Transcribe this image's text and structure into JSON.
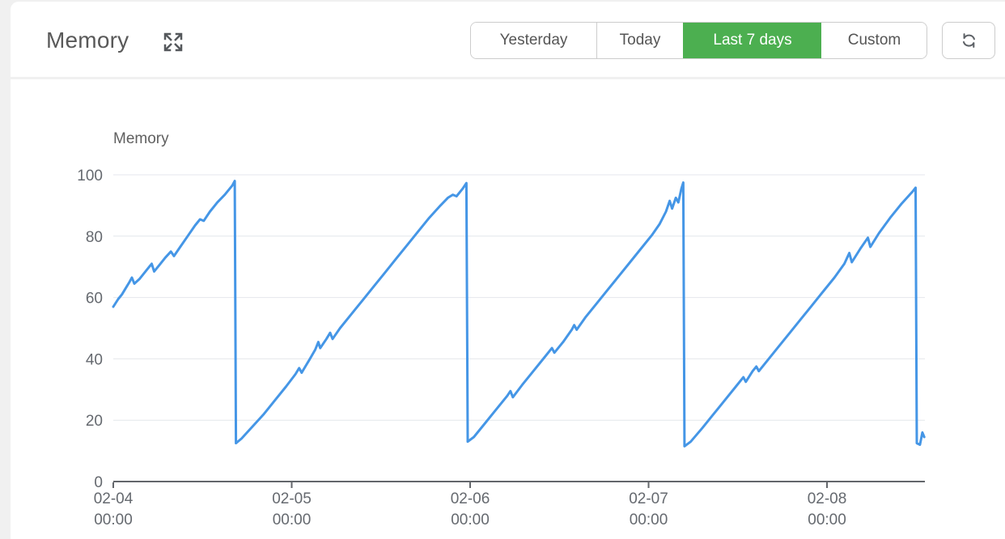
{
  "header": {
    "title": "Memory",
    "expand_icon": "expand-arrows-icon"
  },
  "toolbar": {
    "ranges": [
      {
        "label": "Yesterday",
        "active": false
      },
      {
        "label": "Today",
        "active": false
      },
      {
        "label": "Last 7 days",
        "active": true
      },
      {
        "label": "Custom",
        "active": false
      }
    ],
    "refresh_icon": "sync-icon"
  },
  "colors": {
    "accent_green": "#4caf50",
    "line_blue": "#4596e6",
    "axis": "#63666b",
    "grid": "#e4e7ec",
    "label": "#65696f",
    "page_bg": "#f0f0f0",
    "button_border": "#cccccc"
  },
  "chart_data": {
    "type": "line",
    "title": "Memory",
    "xlabel": "",
    "ylabel": "",
    "ylim": [
      0,
      100
    ],
    "y_ticks": [
      0,
      20,
      40,
      60,
      80,
      100
    ],
    "x_ticks": [
      "02-04 00:00",
      "02-05 00:00",
      "02-06 00:00",
      "02-07 00:00",
      "02-08 00:00"
    ],
    "x_range": [
      "02-04 00:00",
      "02-08 13:10"
    ],
    "grid": true,
    "legend": false,
    "series": [
      {
        "name": "Memory",
        "color": "#4596e6",
        "points": [
          [
            "02-04 00:00",
            57
          ],
          [
            "02-04 00:40",
            59.5
          ],
          [
            "02-04 01:10",
            61
          ],
          [
            "02-04 01:40",
            63
          ],
          [
            "02-04 02:10",
            65
          ],
          [
            "02-04 02:30",
            66.5
          ],
          [
            "02-04 02:50",
            64.5
          ],
          [
            "02-04 03:30",
            66
          ],
          [
            "02-04 04:10",
            68
          ],
          [
            "02-04 04:50",
            70
          ],
          [
            "02-04 05:10",
            71
          ],
          [
            "02-04 05:30",
            68.5
          ],
          [
            "02-04 06:10",
            70.5
          ],
          [
            "02-04 07:00",
            73
          ],
          [
            "02-04 07:45",
            75
          ],
          [
            "02-04 08:10",
            73.5
          ],
          [
            "02-04 09:00",
            76.5
          ],
          [
            "02-04 10:00",
            80
          ],
          [
            "02-04 11:00",
            83.5
          ],
          [
            "02-04 11:40",
            85.5
          ],
          [
            "02-04 12:10",
            85
          ],
          [
            "02-04 13:00",
            88
          ],
          [
            "02-04 14:00",
            91
          ],
          [
            "02-04 15:00",
            93.5
          ],
          [
            "02-04 16:00",
            96.5
          ],
          [
            "02-04 16:20",
            98
          ],
          [
            "02-04 16:30",
            12.5
          ],
          [
            "02-04 17:15",
            14
          ],
          [
            "02-04 18:45",
            18
          ],
          [
            "02-04 20:15",
            22
          ],
          [
            "02-04 21:45",
            26.5
          ],
          [
            "02-04 23:15",
            31
          ],
          [
            "02-05 00:30",
            35
          ],
          [
            "02-05 01:00",
            37
          ],
          [
            "02-05 01:20",
            35.5
          ],
          [
            "02-05 02:20",
            39.5
          ],
          [
            "02-05 03:10",
            43
          ],
          [
            "02-05 03:35",
            45.5
          ],
          [
            "02-05 03:50",
            43.5
          ],
          [
            "02-05 04:40",
            46.5
          ],
          [
            "02-05 05:10",
            48.5
          ],
          [
            "02-05 05:30",
            46.5
          ],
          [
            "02-05 06:30",
            50
          ],
          [
            "02-05 08:00",
            54.5
          ],
          [
            "02-05 09:30",
            59
          ],
          [
            "02-05 11:00",
            63.5
          ],
          [
            "02-05 12:30",
            68
          ],
          [
            "02-05 14:00",
            72.5
          ],
          [
            "02-05 15:30",
            77
          ],
          [
            "02-05 17:00",
            81.5
          ],
          [
            "02-05 18:30",
            86
          ],
          [
            "02-05 20:00",
            90
          ],
          [
            "02-05 21:00",
            92.5
          ],
          [
            "02-05 21:40",
            93.5
          ],
          [
            "02-05 22:10",
            93
          ],
          [
            "02-05 23:00",
            95.5
          ],
          [
            "02-05 23:30",
            97.3
          ],
          [
            "02-05 23:40",
            13
          ],
          [
            "02-06 00:30",
            14.5
          ],
          [
            "02-06 02:00",
            19
          ],
          [
            "02-06 03:30",
            23.5
          ],
          [
            "02-06 05:00",
            28
          ],
          [
            "02-06 05:25",
            29.5
          ],
          [
            "02-06 05:45",
            27.5
          ],
          [
            "02-06 07:00",
            31.5
          ],
          [
            "02-06 08:30",
            36
          ],
          [
            "02-06 10:00",
            40.5
          ],
          [
            "02-06 11:00",
            43.5
          ],
          [
            "02-06 11:20",
            42
          ],
          [
            "02-06 12:30",
            45.5
          ],
          [
            "02-06 13:40",
            49.5
          ],
          [
            "02-06 14:00",
            51
          ],
          [
            "02-06 14:20",
            49.5
          ],
          [
            "02-06 15:30",
            53.5
          ],
          [
            "02-06 17:00",
            58
          ],
          [
            "02-06 18:30",
            62.5
          ],
          [
            "02-06 20:00",
            67
          ],
          [
            "02-06 21:30",
            71.5
          ],
          [
            "02-06 23:00",
            76
          ],
          [
            "02-07 00:30",
            80.5
          ],
          [
            "02-07 01:30",
            84
          ],
          [
            "02-07 02:20",
            88
          ],
          [
            "02-07 02:50",
            91.5
          ],
          [
            "02-07 03:10",
            89
          ],
          [
            "02-07 03:40",
            92.5
          ],
          [
            "02-07 04:00",
            91
          ],
          [
            "02-07 04:25",
            95.5
          ],
          [
            "02-07 04:40",
            97.5
          ],
          [
            "02-07 04:50",
            11.5
          ],
          [
            "02-07 05:40",
            13
          ],
          [
            "02-07 07:15",
            17.5
          ],
          [
            "02-07 08:45",
            22
          ],
          [
            "02-07 10:15",
            26.5
          ],
          [
            "02-07 11:45",
            31
          ],
          [
            "02-07 12:45",
            34
          ],
          [
            "02-07 13:05",
            32.5
          ],
          [
            "02-07 14:00",
            36
          ],
          [
            "02-07 14:30",
            37.5
          ],
          [
            "02-07 14:50",
            36
          ],
          [
            "02-07 16:00",
            39.5
          ],
          [
            "02-07 17:30",
            44
          ],
          [
            "02-07 19:00",
            48.5
          ],
          [
            "02-07 20:30",
            53
          ],
          [
            "02-07 22:00",
            57.5
          ],
          [
            "02-07 23:30",
            62
          ],
          [
            "02-08 01:00",
            66.5
          ],
          [
            "02-08 02:20",
            71
          ],
          [
            "02-08 03:00",
            74.5
          ],
          [
            "02-08 03:20",
            71.5
          ],
          [
            "02-08 04:30",
            76
          ],
          [
            "02-08 05:30",
            79.5
          ],
          [
            "02-08 05:50",
            76.5
          ],
          [
            "02-08 07:00",
            81
          ],
          [
            "02-08 08:30",
            86
          ],
          [
            "02-08 10:00",
            90.5
          ],
          [
            "02-08 11:30",
            94.5
          ],
          [
            "02-08 11:55",
            95.8
          ],
          [
            "02-08 12:05",
            12.5
          ],
          [
            "02-08 12:30",
            12
          ],
          [
            "02-08 12:50",
            16
          ],
          [
            "02-08 13:05",
            14.5
          ]
        ]
      }
    ]
  }
}
